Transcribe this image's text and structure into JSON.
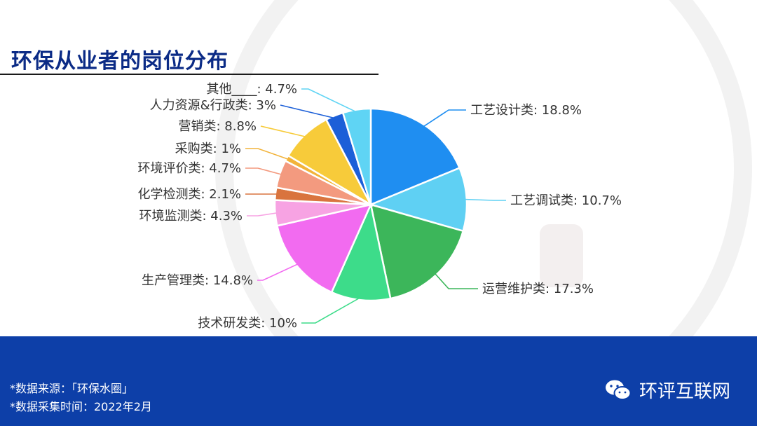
{
  "title": "环保从业者的岗位分布",
  "footer": {
    "source_line": "*数据来源：「环保水圈」",
    "date_line": "*数据采集时间：2022年2月",
    "brand_label": "环评互联网",
    "brand_icon": "wechat-icon"
  },
  "chart_data": {
    "type": "pie",
    "title": "环保从业者的岗位分布",
    "start_angle": "12 o'clock, clockwise",
    "slices": [
      {
        "label": "工艺设计类",
        "value": 18.8,
        "display": "工艺设计类: 18.8%",
        "color": "#1f8ef1"
      },
      {
        "label": "工艺调试类",
        "value": 10.7,
        "display": "工艺调试类: 10.7%",
        "color": "#5fd0f3"
      },
      {
        "label": "运营维护类",
        "value": 17.3,
        "display": "运营维护类: 17.3%",
        "color": "#3cb65a"
      },
      {
        "label": "技术研发类",
        "value": 10,
        "display": "技术研发类: 10%",
        "color": "#3ddc8a"
      },
      {
        "label": "生产管理类",
        "value": 14.8,
        "display": "生产管理类: 14.8%",
        "color": "#f26bf0"
      },
      {
        "label": "环境监测类",
        "value": 4.3,
        "display": "环境监测类: 4.3%",
        "color": "#f7a3e3"
      },
      {
        "label": "化学检测类",
        "value": 2.1,
        "display": "化学检测类: 2.1%",
        "color": "#d9743e"
      },
      {
        "label": "环境评价类",
        "value": 4.7,
        "display": "环境评价类: 4.7%",
        "color": "#f39a7f"
      },
      {
        "label": "采购类",
        "value": 1,
        "display": "采购类: 1%",
        "color": "#f2b33a"
      },
      {
        "label": "营销类",
        "value": 8.8,
        "display": "营销类: 8.8%",
        "color": "#f7cb3a"
      },
      {
        "label": "人力资源&行政类",
        "value": 3,
        "display": "人力资源&行政类: 3%",
        "color": "#1c5fd8"
      },
      {
        "label": "其他____",
        "value": 4.7,
        "display": "其他____: 4.7%",
        "color": "#5fd4f4"
      }
    ]
  }
}
